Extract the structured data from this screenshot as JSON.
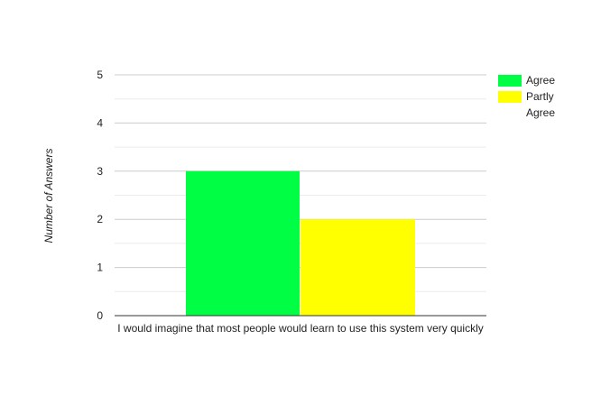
{
  "chart_data": {
    "type": "bar",
    "categories": [
      "I would imagine that most people would learn to use this system very quickly"
    ],
    "series": [
      {
        "name": "Agree",
        "values": [
          3
        ],
        "color": "#00ff44"
      },
      {
        "name": "Partly Agree",
        "values": [
          2
        ],
        "color": "#ffff00"
      }
    ],
    "title": "",
    "xlabel": "",
    "ylabel": "Number of Answers",
    "ylim": [
      0,
      5
    ],
    "yticks": [
      0,
      1,
      2,
      3,
      4,
      5
    ],
    "grid": true,
    "minor_grid": true,
    "legend_position": "right"
  }
}
